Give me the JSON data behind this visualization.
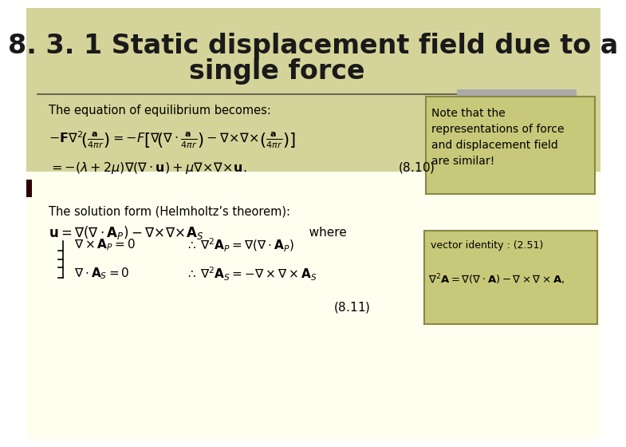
{
  "bg_color_top": "#d4d49a",
  "bg_color_bottom": "#fffff0",
  "title_line1": "8. 3. 1 Static displacement field due to a",
  "title_line2": "single force",
  "title_fontsize": 24,
  "title_color": "#1a1a1a",
  "left_bar_color": "#2b0000",
  "note_box_color": "#c8c87a",
  "note_box_border": "#888844",
  "note_line1": "Note that the",
  "note_line2": "representations of force",
  "note_line3": "and displacement field",
  "note_line4": "are similar!",
  "vector_box_color": "#c8c87a",
  "vector_box_border": "#888844",
  "body_bg": "#fffff0",
  "eq_text_color": "#000000"
}
